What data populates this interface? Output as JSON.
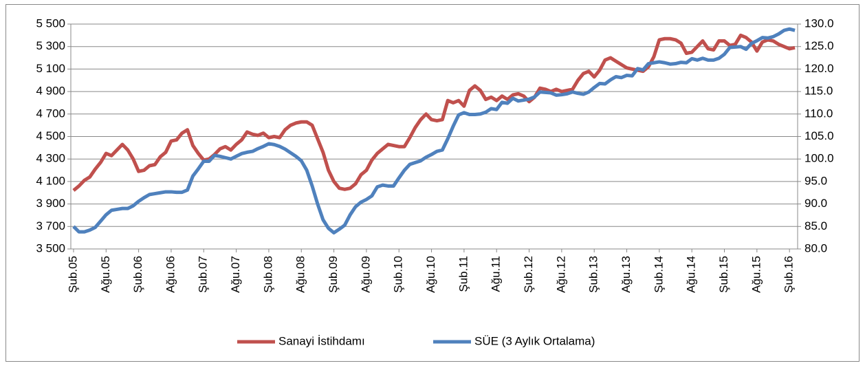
{
  "chart_data": {
    "type": "line",
    "categories": [
      "Şub.05",
      null,
      null,
      null,
      null,
      null,
      "Ağu.05",
      null,
      null,
      null,
      null,
      null,
      "Şub.06",
      null,
      null,
      null,
      null,
      null,
      "Ağu.06",
      null,
      null,
      null,
      null,
      null,
      "Şub.07",
      null,
      null,
      null,
      null,
      null,
      "Ağu.07",
      null,
      null,
      null,
      null,
      null,
      "Şub.08",
      null,
      null,
      null,
      null,
      null,
      "Ağu.08",
      null,
      null,
      null,
      null,
      null,
      "Şub.09",
      null,
      null,
      null,
      null,
      null,
      "Ağu.09",
      null,
      null,
      null,
      null,
      null,
      "Şub.10",
      null,
      null,
      null,
      null,
      null,
      "Ağu.10",
      null,
      null,
      null,
      null,
      null,
      "Şub.11",
      null,
      null,
      null,
      null,
      null,
      "Ağu.11",
      null,
      null,
      null,
      null,
      null,
      "Şub.12",
      null,
      null,
      null,
      null,
      null,
      "Ağu.12",
      null,
      null,
      null,
      null,
      null,
      "Şub.13",
      null,
      null,
      null,
      null,
      null,
      "Ağu.13",
      null,
      null,
      null,
      null,
      null,
      "Şub.14",
      null,
      null,
      null,
      null,
      null,
      "Ağu.14",
      null,
      null,
      null,
      null,
      null,
      "Şub.15",
      null,
      null,
      null,
      null,
      null,
      "Ağu.15",
      null,
      null,
      null,
      null,
      null,
      "Şub.16",
      null
    ],
    "series": [
      {
        "name": "Sanayi İstihdamı",
        "color": "#c0504d",
        "values": [
          4020,
          4060,
          4110,
          4140,
          4210,
          4270,
          4350,
          4330,
          4380,
          4430,
          4380,
          4300,
          4190,
          4200,
          4240,
          4250,
          4320,
          4360,
          4460,
          4470,
          4530,
          4560,
          4420,
          4350,
          4290,
          4300,
          4340,
          4390,
          4410,
          4380,
          4430,
          4470,
          4540,
          4520,
          4510,
          4530,
          4490,
          4500,
          4490,
          4560,
          4600,
          4620,
          4630,
          4630,
          4600,
          4480,
          4360,
          4200,
          4100,
          4040,
          4030,
          4040,
          4080,
          4160,
          4200,
          4290,
          4350,
          4390,
          4430,
          4420,
          4410,
          4410,
          4490,
          4580,
          4650,
          4700,
          4650,
          4640,
          4650,
          4820,
          4800,
          4820,
          4770,
          4910,
          4950,
          4910,
          4830,
          4850,
          4820,
          4860,
          4830,
          4870,
          4880,
          4860,
          4810,
          4850,
          4930,
          4920,
          4900,
          4920,
          4900,
          4910,
          4920,
          5000,
          5060,
          5080,
          5030,
          5090,
          5180,
          5200,
          5170,
          5140,
          5110,
          5100,
          5090,
          5080,
          5120,
          5210,
          5360,
          5370,
          5370,
          5360,
          5330,
          5240,
          5250,
          5300,
          5350,
          5280,
          5270,
          5350,
          5350,
          5310,
          5320,
          5400,
          5380,
          5340,
          5260,
          5340,
          5360,
          5350,
          5320,
          5300,
          5280,
          5290
        ]
      },
      {
        "name": "SÜE (3 Aylık Ortalama)",
        "color": "#4f81bd",
        "axis": "y2",
        "values": [
          85.0,
          83.8,
          83.8,
          84.2,
          84.8,
          86.2,
          87.6,
          88.6,
          88.8,
          89.0,
          89.0,
          89.6,
          90.6,
          91.4,
          92.1,
          92.3,
          92.5,
          92.7,
          92.7,
          92.6,
          92.6,
          93.1,
          96.2,
          97.8,
          99.5,
          99.5,
          100.8,
          100.6,
          100.3,
          100.0,
          100.6,
          101.2,
          101.5,
          101.7,
          102.3,
          102.8,
          103.4,
          103.2,
          102.8,
          102.2,
          101.4,
          100.6,
          99.6,
          97.5,
          94.0,
          90.0,
          86.5,
          84.6,
          83.6,
          84.4,
          85.3,
          87.6,
          89.4,
          90.4,
          91.0,
          91.8,
          93.8,
          94.2,
          94.0,
          94.0,
          95.8,
          97.5,
          98.8,
          99.2,
          99.6,
          100.4,
          101.0,
          101.7,
          102.0,
          104.5,
          107.3,
          109.8,
          110.3,
          109.9,
          109.9,
          110.0,
          110.4,
          111.2,
          111.0,
          112.6,
          112.4,
          113.5,
          112.9,
          113.1,
          113.3,
          113.8,
          114.9,
          114.8,
          114.7,
          114.2,
          114.3,
          114.5,
          114.9,
          114.6,
          114.4,
          114.9,
          115.9,
          116.8,
          116.7,
          117.6,
          118.3,
          118.1,
          118.6,
          118.5,
          120.1,
          119.8,
          121.2,
          121.4,
          121.6,
          121.4,
          121.1,
          121.2,
          121.5,
          121.4,
          122.3,
          122.0,
          122.4,
          122.0,
          122.0,
          122.4,
          123.3,
          124.8,
          124.9,
          125.0,
          124.4,
          125.7,
          126.3,
          127.0,
          126.9,
          127.2,
          127.8,
          128.6,
          128.9,
          128.6
        ]
      }
    ],
    "ylim": [
      3500,
      5500
    ],
    "yticks": [
      {
        "value": 3500,
        "label": "3 500"
      },
      {
        "value": 3700,
        "label": "3 700"
      },
      {
        "value": 3900,
        "label": "3 900"
      },
      {
        "value": 4100,
        "label": "4 100"
      },
      {
        "value": 4300,
        "label": "4 300"
      },
      {
        "value": 4500,
        "label": "4 500"
      },
      {
        "value": 4700,
        "label": "4 700"
      },
      {
        "value": 4900,
        "label": "4 900"
      },
      {
        "value": 5100,
        "label": "5 100"
      },
      {
        "value": 5300,
        "label": "5 300"
      },
      {
        "value": 5500,
        "label": "5 500"
      }
    ],
    "y2lim": [
      80,
      130
    ],
    "y2ticks": [
      {
        "value": 80,
        "label": "80.0"
      },
      {
        "value": 85,
        "label": "85.0"
      },
      {
        "value": 90,
        "label": "90.0"
      },
      {
        "value": 95,
        "label": "95.0"
      },
      {
        "value": 100,
        "label": "100.0"
      },
      {
        "value": 105,
        "label": "105.0"
      },
      {
        "value": 110,
        "label": "110.0"
      },
      {
        "value": 115,
        "label": "115.0"
      },
      {
        "value": 120,
        "label": "120.0"
      },
      {
        "value": 125,
        "label": "125.0"
      },
      {
        "value": 130,
        "label": "130.0"
      }
    ],
    "grid": true,
    "legend": "bottom"
  }
}
